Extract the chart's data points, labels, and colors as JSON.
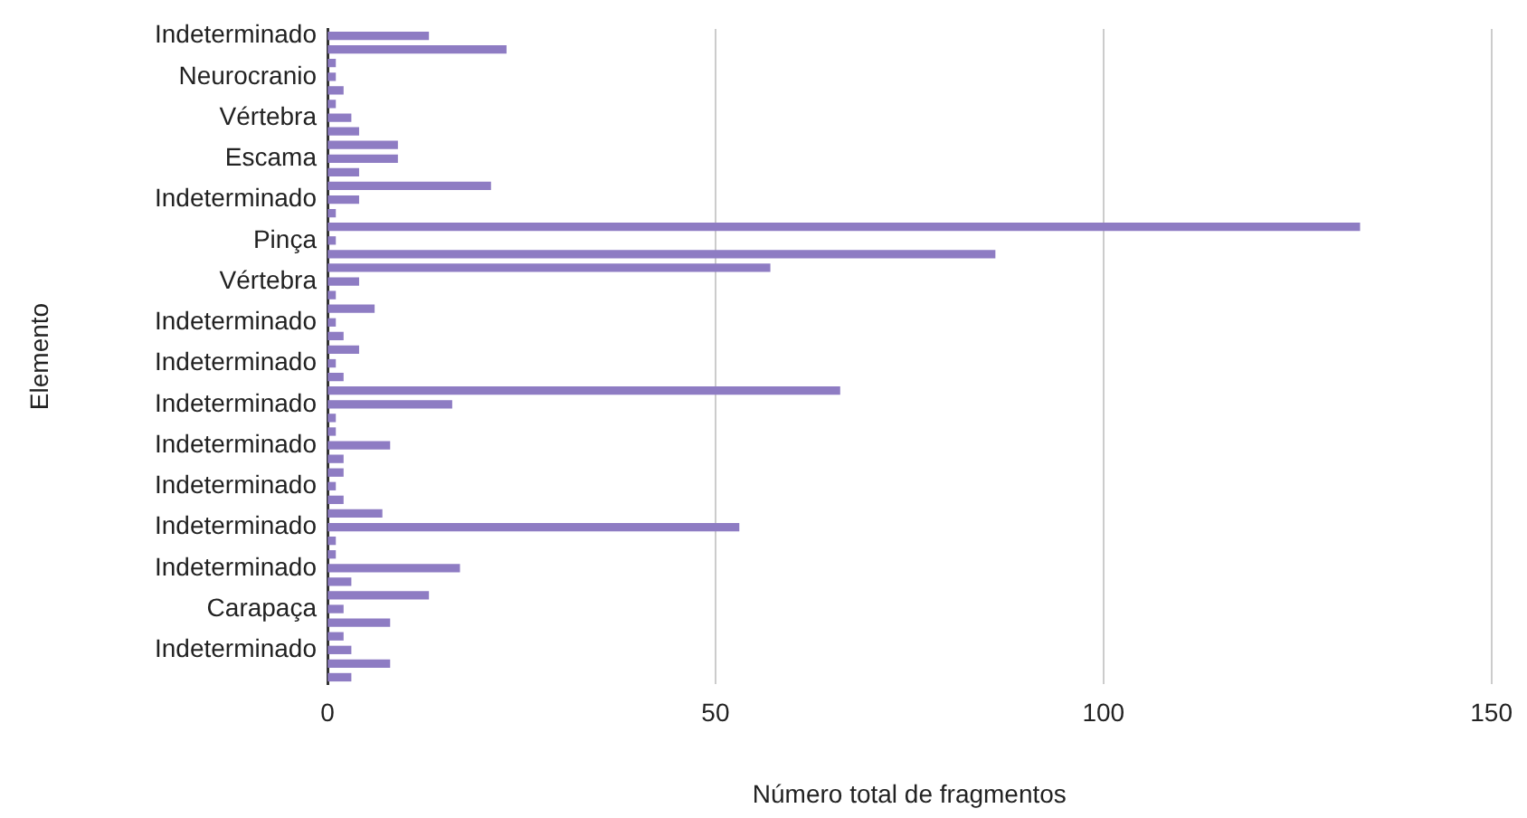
{
  "chart_data": {
    "type": "bar",
    "orientation": "horizontal",
    "xlabel": "Número total de fragmentos",
    "ylabel": "Elemento",
    "categories": [
      "Indeterminado",
      null,
      null,
      "Neurocranio",
      null,
      null,
      "Vértebra",
      null,
      null,
      "Escama",
      null,
      null,
      "Indeterminado",
      null,
      null,
      "Pinça",
      null,
      null,
      "Vértebra",
      null,
      null,
      "Indeterminado",
      null,
      null,
      "Indeterminado",
      null,
      null,
      "Indeterminado",
      null,
      null,
      "Indeterminado",
      null,
      null,
      "Indeterminado",
      null,
      null,
      "Indeterminado",
      null,
      null,
      "Indeterminado",
      null,
      null,
      "Carapaça",
      null,
      null,
      "Indeterminado",
      null,
      null
    ],
    "values": [
      13,
      23,
      1,
      1,
      2,
      1,
      3,
      4,
      9,
      9,
      4,
      21,
      4,
      1,
      133,
      1,
      86,
      57,
      4,
      1,
      6,
      1,
      2,
      4,
      1,
      2,
      66,
      16,
      1,
      1,
      8,
      2,
      2,
      1,
      2,
      7,
      53,
      1,
      1,
      17,
      3,
      13,
      2,
      8,
      2,
      3,
      8,
      3
    ],
    "color": "#8e7cc3",
    "xlim": [
      0,
      150
    ],
    "xticks": [
      0,
      50,
      100,
      150
    ],
    "grid": "x",
    "legend": false
  }
}
